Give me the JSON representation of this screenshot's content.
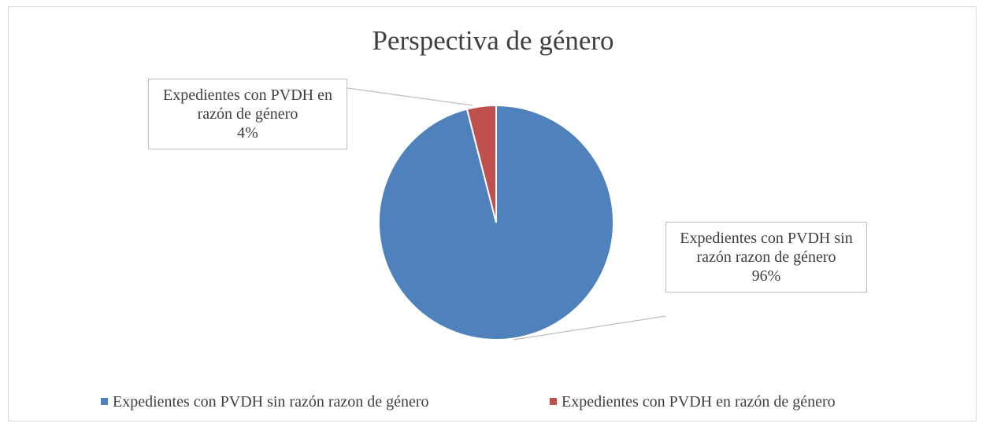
{
  "chart_data": {
    "type": "pie",
    "title": "Perspectiva de género",
    "categories": [
      "Expedientes con PVDH sin razón razon de género",
      "Expedientes con PVDH en razón de género"
    ],
    "values": [
      96,
      4
    ],
    "value_labels": [
      "96%",
      "4%"
    ],
    "colors": [
      "#4f81bd",
      "#c0504d"
    ],
    "legend": "bottom"
  }
}
